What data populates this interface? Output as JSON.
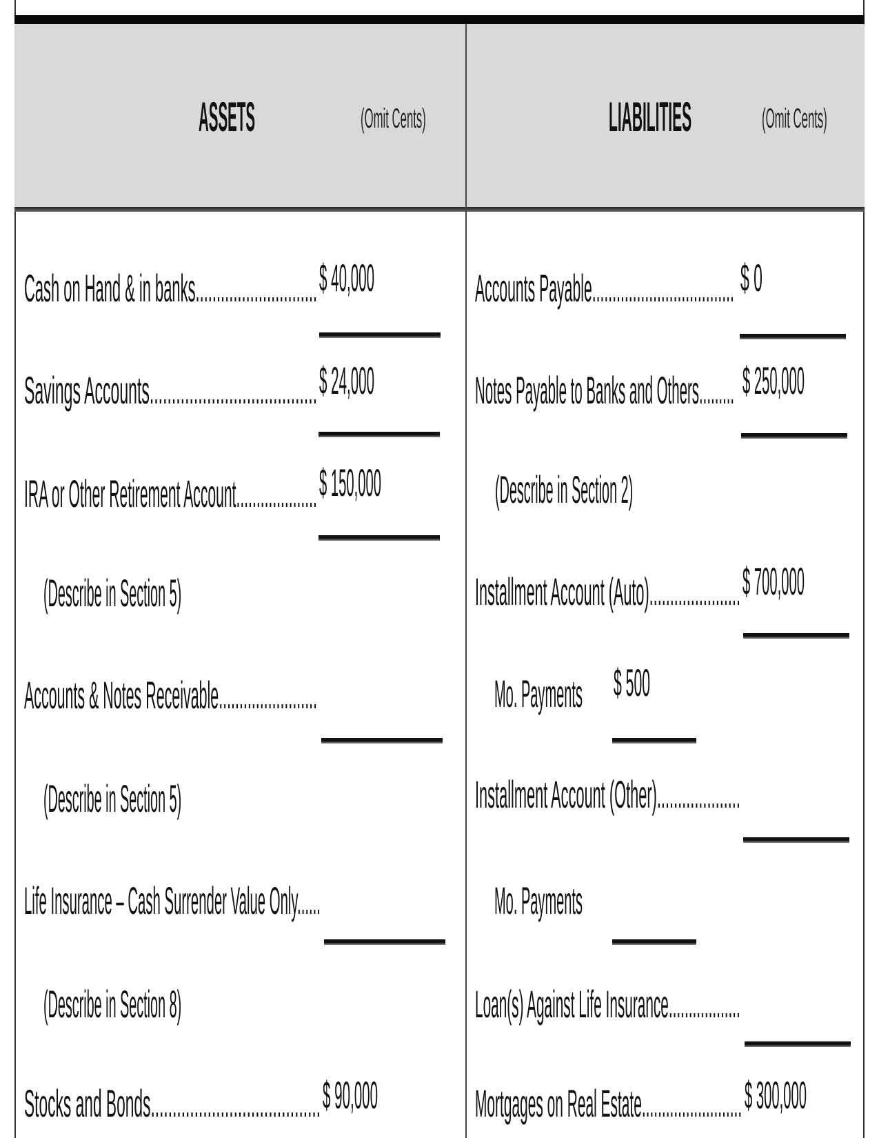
{
  "header": {
    "assets_title": "ASSETS",
    "assets_note": "(Omit Cents)",
    "liabilities_title": "LIABILITIES",
    "liabilities_note": "(Omit Cents)"
  },
  "assets": [
    {
      "label": "Cash on Hand & in banks.............................",
      "amount": "$ 40,000"
    },
    {
      "label": "Savings Accounts......................................",
      "amount": "$ 24,000"
    },
    {
      "label": "IRA or Other Retirement Account....................",
      "amount": "$ 150,000"
    },
    {
      "label": "(Describe in Section 5)",
      "amount": ""
    },
    {
      "label": "Accounts & Notes Receivable........................",
      "amount": ""
    },
    {
      "label": "(Describe in Section 5)",
      "amount": ""
    },
    {
      "label": "Life Insurance – Cash Surrender Value Only......",
      "amount": ""
    },
    {
      "label": "(Describe in Section 8)",
      "amount": ""
    },
    {
      "label": "Stocks and Bonds.......................................",
      "amount": "$ 90,000"
    }
  ],
  "liabilities": [
    {
      "label": "Accounts Payable...................................",
      "amount": "$ 0"
    },
    {
      "label": "Notes Payable to Banks and Others.........",
      "amount": "$ 250,000"
    },
    {
      "label": "(Describe in Section 2)",
      "amount": ""
    },
    {
      "label": "Installment Account (Auto)......................",
      "amount": "$ 700,000"
    },
    {
      "label": "Mo. Payments",
      "amount": "$ 500"
    },
    {
      "label": "Installment Account (Other)....................",
      "amount": ""
    },
    {
      "label": "Mo. Payments",
      "amount": ""
    },
    {
      "label": "Loan(s) Against Life Insurance..................",
      "amount": ""
    },
    {
      "label": "Mortgages on Real Estate.........................",
      "amount": "$ 300,000"
    }
  ]
}
